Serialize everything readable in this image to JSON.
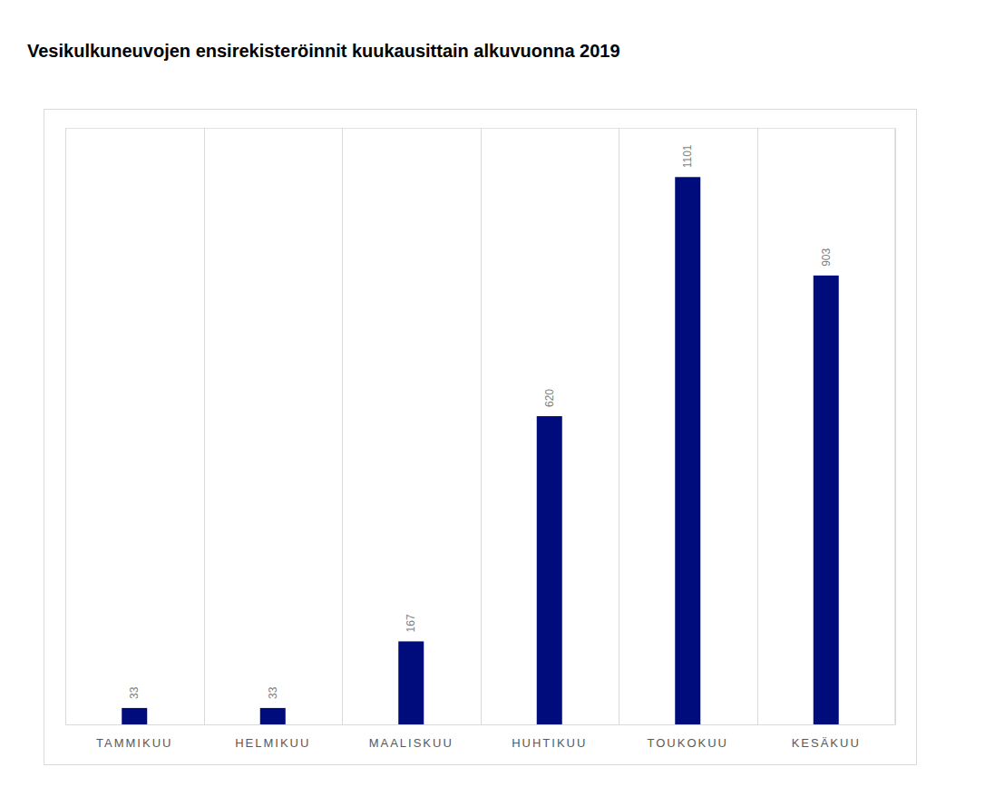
{
  "chart_data": {
    "type": "bar",
    "title": "Vesikulkuneuvojen ensirekisteröinnit kuukausittain alkuvuonna 2019",
    "categories": [
      "TAMMIKUU",
      "HELMIKUU",
      "MAALISKUU",
      "HUHTIKUU",
      "TOUKOKUU",
      "KESÄKUU"
    ],
    "values": [
      33,
      33,
      167,
      620,
      1101,
      903
    ],
    "color": "#000c7b",
    "ylim": [
      0,
      1200
    ],
    "grid": true,
    "data_labels": true,
    "tick_labels": "x"
  }
}
